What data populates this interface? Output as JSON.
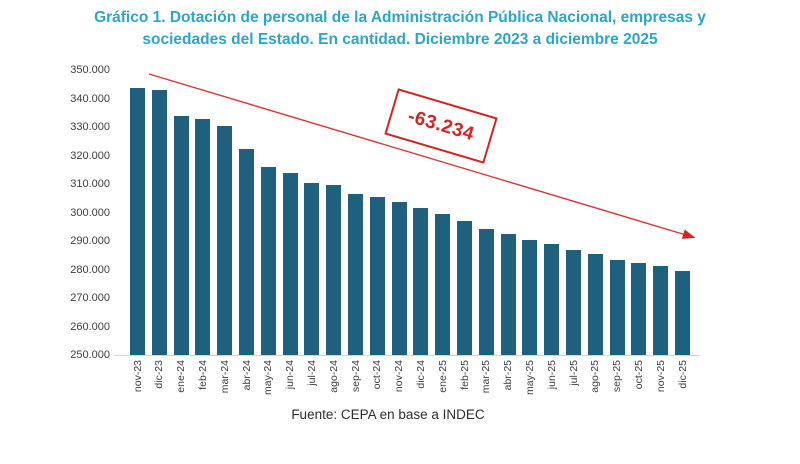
{
  "title": "Gráfico 1. Dotación de personal de la Administración Pública Nacional, empresas y sociedades del Estado. En cantidad. Diciembre 2023 a diciembre 2025",
  "source": "Fuente: CEPA en base a INDEC",
  "annotation": "-63.234",
  "colors": {
    "title": "#2ba5c9",
    "bar": "#20607f",
    "accent_red": "#d32424",
    "axis_text": "#3d3d3d",
    "axis_line": "#d4d4d4",
    "background": "#ffffff"
  },
  "chart_data": {
    "type": "bar",
    "title": "Gráfico 1. Dotación de personal de la Administración Pública Nacional, empresas y sociedades del Estado. En cantidad. Diciembre 2023 a diciembre 2025",
    "categories": [
      "nov-23",
      "dic-23",
      "ene-24",
      "feb-24",
      "mar-24",
      "abr-24",
      "may-24",
      "jun-24",
      "jul-24",
      "ago-24",
      "sep-24",
      "oct-24",
      "nov-24",
      "dic-24",
      "ene-25",
      "feb-25",
      "mar-25",
      "abr-25",
      "may-25",
      "jun-25",
      "jul-25",
      "ago-25",
      "sep-25",
      "oct-25",
      "nov-25",
      "dic-25"
    ],
    "values": [
      343800,
      343065,
      334000,
      333000,
      330400,
      322400,
      316300,
      314100,
      310600,
      309900,
      306800,
      305500,
      304000,
      301800,
      299800,
      297200,
      294300,
      292500,
      290500,
      289100,
      287200,
      285500,
      283400,
      282300,
      281400,
      279831
    ],
    "xlabel": "",
    "ylabel": "",
    "ylim": [
      250000,
      350000
    ],
    "ytick_interval": 10000,
    "ytick_labels": [
      "350.000",
      "340.000",
      "330.000",
      "320.000",
      "310.000",
      "300.000",
      "290.000",
      "280.000",
      "270.000",
      "260.000",
      "250.000"
    ],
    "grid": false,
    "legend": false,
    "annotations": [
      {
        "type": "arrow",
        "from": "dic-23",
        "to": "dic-25",
        "color": "#d32424",
        "note": "diagonal trend arrow across bar tops"
      },
      {
        "type": "label",
        "text": "-63.234",
        "color": "#d32424",
        "boxed": true,
        "rotation_deg": 16.5
      }
    ]
  }
}
